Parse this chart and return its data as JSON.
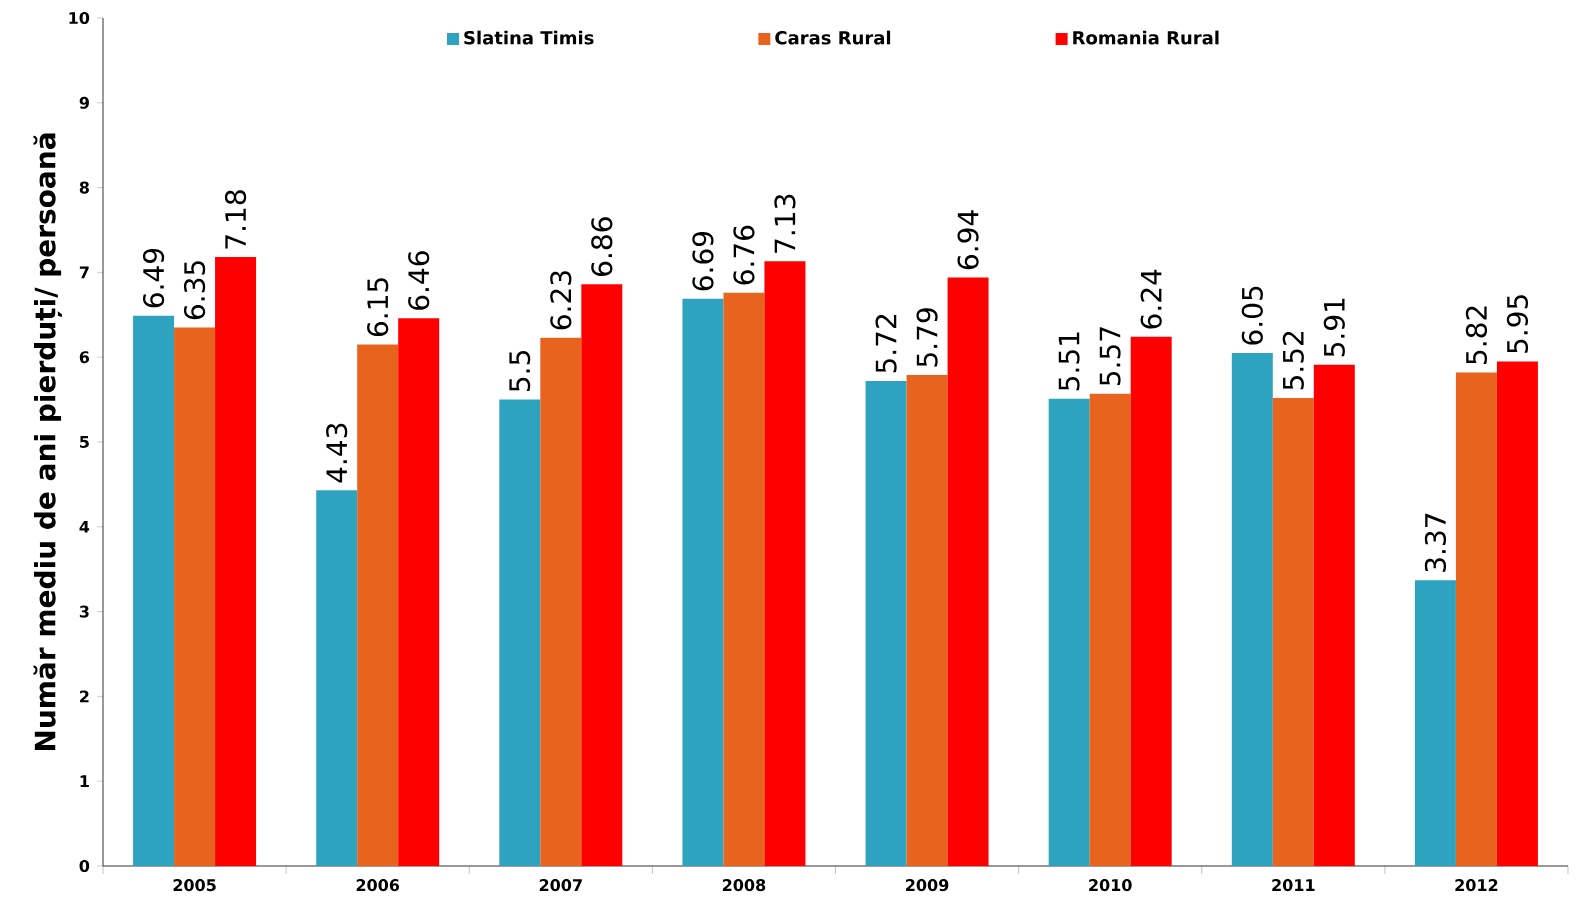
{
  "chart_data": {
    "type": "bar",
    "ylabel": "Număr mediu de ani pierduți/ persoană",
    "categories": [
      "2005",
      "2006",
      "2007",
      "2008",
      "2009",
      "2010",
      "2011",
      "2012"
    ],
    "series": [
      {
        "name": "Slatina Timis",
        "color": "#2ea3c0",
        "values": [
          6.49,
          4.43,
          5.5,
          6.69,
          5.72,
          5.51,
          6.05,
          3.37
        ]
      },
      {
        "name": "Caras Rural",
        "color": "#e8641e",
        "values": [
          6.35,
          6.15,
          6.23,
          6.76,
          5.79,
          5.57,
          5.52,
          5.82
        ]
      },
      {
        "name": "Romania Rural",
        "color": "#ff0000",
        "values": [
          7.18,
          6.46,
          6.86,
          7.13,
          6.94,
          6.24,
          5.91,
          5.95
        ]
      }
    ],
    "ylim": [
      0,
      10
    ],
    "yticks": [
      0,
      1,
      2,
      3,
      4,
      5,
      6,
      7,
      8,
      9,
      10
    ],
    "data_labels": true,
    "legend": "top",
    "grid": false
  }
}
